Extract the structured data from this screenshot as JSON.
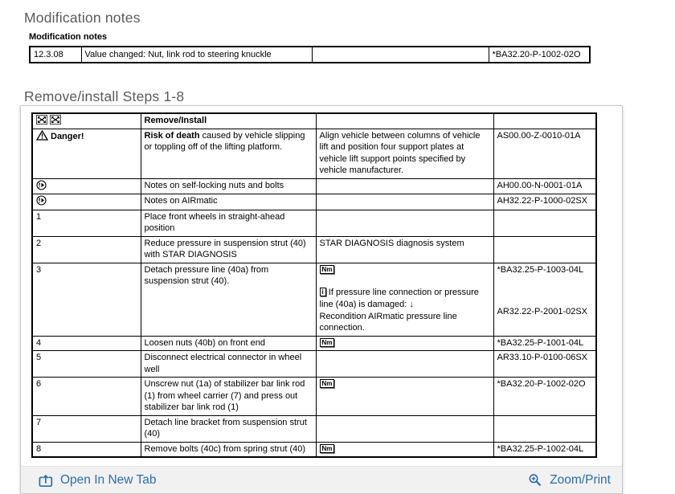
{
  "modification_notes": {
    "section_title": "Modification notes",
    "table_label": "Modification notes",
    "row": {
      "date": "12.3.08",
      "change": "Value changed: Nut, link rod to steering knuckle",
      "blank": "",
      "code": "*BA32.20-P-1002-02O"
    }
  },
  "steps": {
    "section_title": "Remove/install Steps 1-8",
    "rows": [
      {
        "id": "header",
        "col1": {
          "icons": [
            "expand-arrows-icon",
            "expand-arrows-icon"
          ]
        },
        "col2": {
          "bold": "Remove/Install"
        },
        "col3": {},
        "col4": {}
      },
      {
        "id": "danger",
        "col1": {
          "icon": "warning-triangle-icon",
          "label": "Danger!"
        },
        "col2": {
          "bold": "Risk of death",
          "text": " caused by vehicle slipping or toppling off of the lifting platform."
        },
        "col3": {
          "text": "Align vehicle between columns of vehicle lift and position four support plates at vehicle lift support points specified by vehicle manufacturer."
        },
        "col4": {
          "codes": [
            "AS00.00-Z-0010-01A"
          ]
        }
      },
      {
        "id": "note-selflocking",
        "col1": {
          "icon": "note-icon"
        },
        "col2": {
          "text": "Notes on self-locking nuts and bolts"
        },
        "col3": {},
        "col4": {
          "codes": [
            "AH00.00-N-0001-01A"
          ]
        }
      },
      {
        "id": "note-airmatic",
        "col1": {
          "icon": "note-icon"
        },
        "col2": {
          "text": "Notes on AIRmatic"
        },
        "col3": {},
        "col4": {
          "codes": [
            "AH32.22-P-1000-02SX"
          ]
        }
      },
      {
        "id": "step1",
        "col1": {
          "text": "1"
        },
        "col2": {
          "text": "Place front wheels in straight-ahead position"
        },
        "col3": {},
        "col4": {}
      },
      {
        "id": "step2",
        "col1": {
          "text": "2"
        },
        "col2": {
          "text": "Reduce pressure in suspension strut (40) with STAR DIAGNOSIS"
        },
        "col3": {
          "text": "STAR DIAGNOSIS diagnosis system"
        },
        "col4": {}
      },
      {
        "id": "step3",
        "col1": {
          "text": "3"
        },
        "col2": {
          "text": "Detach pressure line (40a) from suspension strut (40)."
        },
        "col3": {
          "nm": true,
          "note_line1": "If pressure line connection or pressure line (40a) is damaged: ↓",
          "note_line2": "Recondition AIRmatic pressure line connection."
        },
        "col4": {
          "codes": [
            "*BA32.25-P-1003-04L",
            "AR32.22-P-2001-02SX"
          ],
          "split": true
        }
      },
      {
        "id": "step4",
        "col1": {
          "text": "4"
        },
        "col2": {
          "text": "Loosen nuts (40b) on front end"
        },
        "col3": {
          "nm": true
        },
        "col4": {
          "codes": [
            "*BA32.25-P-1001-04L"
          ]
        }
      },
      {
        "id": "step5",
        "col1": {
          "text": "5"
        },
        "col2": {
          "text": "Disconnect electrical connector in wheel well"
        },
        "col3": {},
        "col4": {
          "codes": [
            "AR33.10-P-0100-06SX"
          ]
        }
      },
      {
        "id": "step6",
        "col1": {
          "text": "6"
        },
        "col2": {
          "text": "Unscrew nut (1a) of stabilizer bar link rod (1) from wheel carrier (7) and press out stabilizer bar link rod (1)"
        },
        "col3": {
          "nm": true
        },
        "col4": {
          "codes": [
            "*BA32.20-P-1002-02O"
          ]
        }
      },
      {
        "id": "step7",
        "col1": {
          "text": "7"
        },
        "col2": {
          "text": "Detach line bracket from suspension strut (40)"
        },
        "col3": {},
        "col4": {}
      },
      {
        "id": "step8",
        "col1": {
          "text": "8"
        },
        "col2": {
          "text": "Remove bolts (40c) from spring strut (40)"
        },
        "col3": {
          "nm": true
        },
        "col4": {
          "codes": [
            "*BA32.25-P-1002-04L"
          ]
        }
      }
    ]
  },
  "icons": {
    "nm_label": "Nm",
    "info_label": "i"
  },
  "footer": {
    "open_in_new_tab": "Open In New Tab",
    "zoom_print": "Zoom/Print"
  },
  "colors": {
    "link_blue": "#2b6cad",
    "heading_gray": "#595a5c",
    "footer_bg": "#f1f1f2"
  }
}
